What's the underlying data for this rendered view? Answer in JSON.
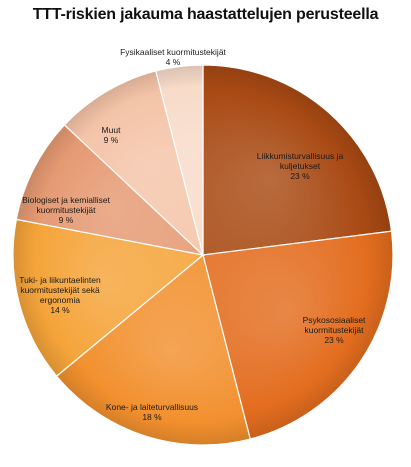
{
  "chart_data": {
    "type": "pie",
    "title": "TTT-riskien jakauma haastattelujen perusteella",
    "slices": [
      {
        "label": [
          "Liikkumisturvallisuus ja",
          "kuljetukset",
          "23 %"
        ],
        "value": 23,
        "color": "#a94a14"
      },
      {
        "label": [
          "Psykososiaaliset",
          "kuormitustekijät",
          "23 %"
        ],
        "value": 23,
        "color": "#e36d1f"
      },
      {
        "label": [
          "Kone- ja laiteturvallisuus",
          "18 %"
        ],
        "value": 18,
        "color": "#f2902e"
      },
      {
        "label": [
          "Tuki- ja liikuntaelinten",
          "kuormitustekijät sekä",
          "ergonomia",
          "14 %"
        ],
        "value": 14,
        "color": "#f5a43a"
      },
      {
        "label": [
          "Biologiset ja kemialliset",
          "kuormitustekijät",
          "9 %"
        ],
        "value": 9,
        "color": "#e59a73"
      },
      {
        "label": [
          "Muut",
          "9 %"
        ],
        "value": 9,
        "color": "#f4c4a8"
      },
      {
        "label": [
          "Fysikaaliset kuormitustekijät",
          "4 %"
        ],
        "value": 4,
        "color": "#f8dbc9"
      }
    ]
  }
}
